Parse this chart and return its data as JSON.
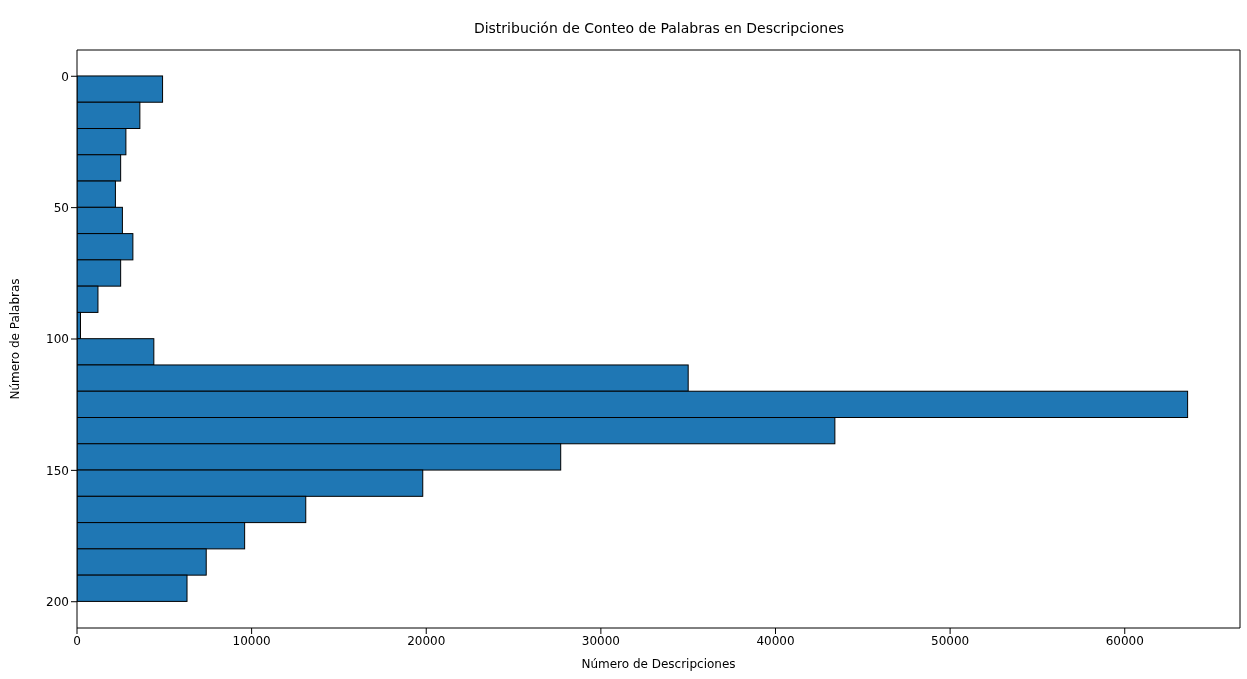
{
  "chart_data": {
    "type": "histogram",
    "orientation": "horizontal",
    "title": "Distribución de Conteo de Palabras en Descripciones",
    "xlabel": "Número de Descripciones",
    "ylabel": "Número de Palabras",
    "bins": [
      0,
      10,
      20,
      30,
      40,
      50,
      60,
      70,
      80,
      90,
      100,
      110,
      120,
      130,
      140,
      150,
      160,
      170,
      180,
      190,
      200
    ],
    "values": [
      4900,
      3600,
      2800,
      2500,
      2200,
      2600,
      3200,
      2500,
      1200,
      200,
      4400,
      35000,
      63600,
      43400,
      27700,
      19800,
      13100,
      9600,
      7400,
      6300
    ],
    "color": "#1f77b4",
    "xlim": [
      0,
      66600
    ],
    "xticks": [
      0,
      10000,
      20000,
      30000,
      40000,
      50000,
      60000
    ],
    "ylim": [
      210,
      -10
    ],
    "yticks": [
      0,
      50,
      100,
      150,
      200
    ],
    "grid": false,
    "legend": false
  }
}
